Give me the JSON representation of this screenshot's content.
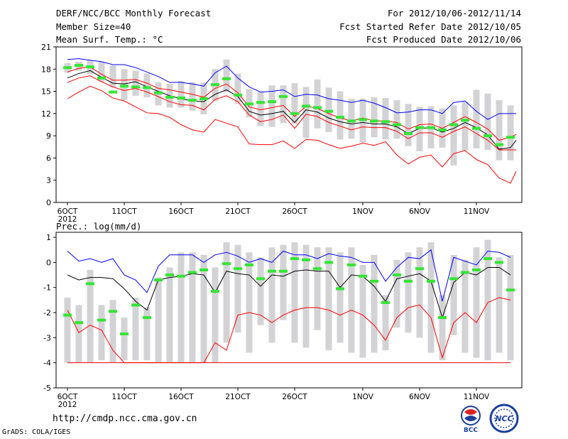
{
  "header": {
    "title": "DERF/NCC/BCC Monthly Forecast",
    "member_size": "Member Size=40",
    "variable": "Mean Surf. Temp.: °C",
    "period": "For 2012/10/06-2012/11/14",
    "refer_date": "Fcst Started Refer Date 2012/10/05",
    "produced_date": "Fcst Produced Date 2012/10/06"
  },
  "footer": {
    "url": "http://cmdp.ncc.cma.gov.cn",
    "grads": "GrADS: COLA/IGES",
    "logo1_text": "BCC",
    "logo2_text": "NCC"
  },
  "colors": {
    "box": "#d3d3d6",
    "mean": "#33e633",
    "max": "#0000ff",
    "min_env": "#ff0000",
    "median": "#000000"
  },
  "chart_data": [
    {
      "type": "box",
      "title": "Mean Surf. Temp.: °C",
      "xlabel": "",
      "ylabel": "°C",
      "x_tick_labels": [
        "6OCT",
        "11OCT",
        "16OCT",
        "21OCT",
        "26OCT",
        "1NOV",
        "6NOV",
        "11NOV"
      ],
      "x_tick_day_index": [
        0,
        5,
        10,
        15,
        20,
        26,
        31,
        36
      ],
      "x_start_year_label": "2012",
      "days": 40,
      "ylim": [
        0,
        21
      ],
      "yticks": [
        0,
        3,
        6,
        9,
        12,
        15,
        18,
        21
      ],
      "box_low": [
        17.5,
        17.8,
        17.3,
        16.3,
        15.5,
        13.8,
        14.4,
        14.2,
        13.1,
        12.8,
        12.8,
        12.4,
        11.9,
        13.7,
        14.9,
        13.3,
        11.5,
        10.3,
        10.2,
        10.7,
        10.6,
        8.7,
        10.0,
        9.5,
        8.5,
        8.6,
        8.1,
        8.8,
        8.5,
        8.6,
        7.6,
        6.9,
        7.3,
        7.4,
        5.0,
        7.0,
        7.3,
        7.1,
        5.7,
        5.7
      ],
      "box_high": [
        18.8,
        19.0,
        19.2,
        19.0,
        18.5,
        18.0,
        17.8,
        17.4,
        16.2,
        16.0,
        16.4,
        16.2,
        16.2,
        18.0,
        19.3,
        17.4,
        15.3,
        14.9,
        15.8,
        15.8,
        16.1,
        15.6,
        16.6,
        15.5,
        15.0,
        14.0,
        14.0,
        14.2,
        14.1,
        13.8,
        13.3,
        12.9,
        13.0,
        12.7,
        13.1,
        13.6,
        15.2,
        14.7,
        13.8,
        13.1
      ],
      "series": [
        {
          "name": "mean",
          "values": [
            18.2,
            18.5,
            18.3,
            16.8,
            14.9,
            15.7,
            15.6,
            15.5,
            14.8,
            14.2,
            14.1,
            13.8,
            14.0,
            15.9,
            16.7,
            14.5,
            13.3,
            13.5,
            13.6,
            14.3,
            12.0,
            13.0,
            12.8,
            12.3,
            11.5,
            11.0,
            11.2,
            11.0,
            10.9,
            10.5,
            9.3,
            10.1,
            10.1,
            9.8,
            10.5,
            11.1,
            10.0,
            9.0,
            7.8,
            8.8
          ]
        },
        {
          "name": "max",
          "values": [
            19.3,
            19.4,
            19.2,
            19.0,
            18.6,
            18.6,
            18.2,
            17.6,
            17.0,
            16.2,
            16.2,
            16.0,
            15.7,
            17.5,
            18.4,
            16.8,
            15.6,
            14.9,
            15.0,
            15.2,
            14.3,
            14.6,
            14.5,
            14.0,
            13.8,
            13.5,
            13.8,
            13.4,
            12.8,
            12.1,
            12.2,
            12.5,
            12.5,
            12.0,
            13.5,
            13.7,
            12.3,
            11.2,
            12.0,
            12.0
          ]
        },
        {
          "name": "upper",
          "values": [
            17.6,
            18.1,
            18.3,
            17.3,
            16.5,
            16.5,
            16.6,
            16.1,
            15.4,
            15.2,
            14.9,
            14.6,
            14.2,
            15.4,
            16.0,
            14.8,
            12.9,
            12.5,
            12.8,
            13.1,
            11.6,
            13.0,
            12.7,
            12.0,
            11.4,
            11.0,
            11.4,
            11.0,
            11.0,
            10.8,
            9.9,
            10.5,
            10.6,
            10.0,
            10.8,
            11.6,
            10.8,
            9.9,
            8.4,
            8.8
          ]
        },
        {
          "name": "median",
          "values": [
            16.8,
            17.4,
            17.8,
            16.9,
            16.1,
            16.0,
            16.3,
            15.6,
            15.0,
            14.4,
            14.0,
            13.7,
            13.6,
            14.6,
            15.2,
            14.3,
            12.3,
            11.8,
            12.0,
            12.3,
            10.8,
            12.5,
            12.2,
            11.4,
            10.9,
            10.6,
            10.8,
            10.6,
            10.6,
            10.2,
            9.3,
            10.0,
            10.1,
            9.5,
            10.0,
            10.8,
            10.1,
            9.1,
            7.2,
            7.4
          ]
        },
        {
          "name": "lower",
          "values": [
            16.2,
            16.8,
            17.1,
            16.3,
            15.6,
            15.1,
            15.4,
            14.9,
            14.3,
            13.6,
            13.2,
            13.1,
            12.5,
            13.9,
            14.4,
            13.6,
            11.8,
            10.9,
            11.2,
            11.8,
            10.0,
            11.9,
            11.6,
            10.8,
            10.3,
            9.8,
            10.2,
            10.1,
            10.1,
            9.6,
            8.6,
            9.4,
            9.4,
            8.8,
            9.6,
            10.2,
            9.3,
            8.4,
            7.1,
            7.1
          ]
        },
        {
          "name": "min",
          "values": [
            14.0,
            14.9,
            15.7,
            15.1,
            14.1,
            13.7,
            12.9,
            12.1,
            12.0,
            11.5,
            10.5,
            9.8,
            9.5,
            11.2,
            10.7,
            10.2,
            7.9,
            7.8,
            7.8,
            8.3,
            7.3,
            8.5,
            8.4,
            7.8,
            7.3,
            7.6,
            8.0,
            7.7,
            8.2,
            6.4,
            5.2,
            6.1,
            6.4,
            4.8,
            6.6,
            7.0,
            5.8,
            5.1,
            3.3,
            2.6
          ]
        }
      ],
      "extra_tail": {
        "max": 12.0,
        "upper": 9.2,
        "median": 8.4,
        "lower": 7.1,
        "min": 4.2
      }
    },
    {
      "type": "box",
      "title": "Prec.: log(mm/d)",
      "xlabel": "",
      "ylabel": "log(mm/d)",
      "x_tick_labels": [
        "6OCT",
        "11OCT",
        "16OCT",
        "21OCT",
        "26OCT",
        "1NOV",
        "6NOV",
        "11NOV"
      ],
      "x_tick_day_index": [
        0,
        5,
        10,
        15,
        20,
        26,
        31,
        36
      ],
      "x_start_year_label": "2012",
      "days": 40,
      "ylim": [
        -5,
        1.2
      ],
      "yticks": [
        -5,
        -4,
        -3,
        -2,
        -1,
        0,
        1
      ],
      "box_low": [
        -4.0,
        -4.0,
        -4.0,
        -3.9,
        -4.0,
        -3.9,
        -3.9,
        -3.9,
        -4.0,
        -4.0,
        -4.0,
        -4.0,
        -4.0,
        -4.0,
        -3.2,
        -2.8,
        -3.6,
        -2.5,
        -3.2,
        -2.3,
        -3.2,
        -3.4,
        -2.7,
        -3.5,
        -3.2,
        -3.6,
        -3.8,
        -3.6,
        -3.5,
        -2.6,
        -2.8,
        -3.0,
        -3.6,
        -3.9,
        -2.9,
        -3.6,
        -3.8,
        -3.9,
        -3.6,
        -3.9
      ],
      "box_high": [
        -1.4,
        -1.7,
        -0.3,
        -1.7,
        -1.5,
        -2.2,
        -1.4,
        -1.8,
        -0.6,
        -0.2,
        0.4,
        0.4,
        0.3,
        -0.2,
        0.8,
        0.7,
        0.4,
        0.2,
        0.6,
        0.7,
        0.8,
        0.7,
        0.6,
        0.6,
        0.4,
        0.6,
        -0.1,
        0.3,
        -1.3,
        0.1,
        0.4,
        0.6,
        0.8,
        -1.3,
        0.3,
        0.1,
        0.6,
        0.9,
        0.2,
        0.3
      ],
      "series": [
        {
          "name": "mean",
          "values": [
            -2.1,
            -2.4,
            -0.85,
            -2.3,
            -1.95,
            -2.85,
            -1.7,
            -2.2,
            -0.7,
            -0.5,
            -0.55,
            -0.4,
            -0.3,
            -1.15,
            -0.05,
            -0.25,
            -0.1,
            -0.65,
            -0.35,
            -0.35,
            0.15,
            0.1,
            -0.25,
            0.0,
            -1.05,
            -0.1,
            -0.55,
            -0.75,
            -1.6,
            -0.5,
            -0.75,
            -0.25,
            -0.75,
            -2.2,
            -0.65,
            -0.4,
            -0.3,
            0.15,
            0.0,
            -1.1
          ]
        },
        {
          "name": "max",
          "values": [
            0.45,
            0.05,
            0.15,
            0.0,
            0.15,
            -0.5,
            -0.7,
            -1.2,
            -0.15,
            0.3,
            0.3,
            0.3,
            0.0,
            0.3,
            0.4,
            0.25,
            0.0,
            0.15,
            0.0,
            0.45,
            0.3,
            0.3,
            0.15,
            0.35,
            0.25,
            0.2,
            0.0,
            0.0,
            -0.75,
            -0.2,
            0.2,
            0.15,
            0.5,
            -1.55,
            0.2,
            0.05,
            -0.1,
            0.45,
            0.4,
            0.2
          ]
        },
        {
          "name": "median",
          "values": [
            -0.5,
            -0.7,
            -0.6,
            -0.6,
            -0.65,
            -1.05,
            -1.55,
            -1.9,
            -0.7,
            -0.6,
            -0.55,
            -0.45,
            -0.5,
            -1.2,
            -0.35,
            -0.45,
            -0.5,
            -0.95,
            -0.5,
            -0.55,
            -0.35,
            -0.3,
            -0.35,
            -0.35,
            -1.0,
            -0.5,
            -0.55,
            -0.95,
            -1.55,
            -0.65,
            -0.55,
            -0.45,
            -0.75,
            -2.2,
            -0.8,
            -0.4,
            -0.5,
            -0.2,
            -0.2,
            -0.5
          ]
        },
        {
          "name": "min",
          "values": [
            -1.9,
            -2.8,
            -2.5,
            -2.7,
            -3.5,
            -4.0,
            -4.0,
            -4.0,
            -4.0,
            -4.0,
            -4.0,
            -4.0,
            -4.0,
            -3.2,
            -3.5,
            -2.1,
            -2.0,
            -2.1,
            -2.4,
            -2.1,
            -1.9,
            -1.8,
            -1.8,
            -1.9,
            -2.1,
            -1.9,
            -2.1,
            -2.5,
            -3.1,
            -2.2,
            -1.8,
            -1.7,
            -2.2,
            -3.8,
            -2.4,
            -2.0,
            -2.4,
            -1.6,
            -1.4,
            -1.5
          ]
        }
      ]
    }
  ]
}
